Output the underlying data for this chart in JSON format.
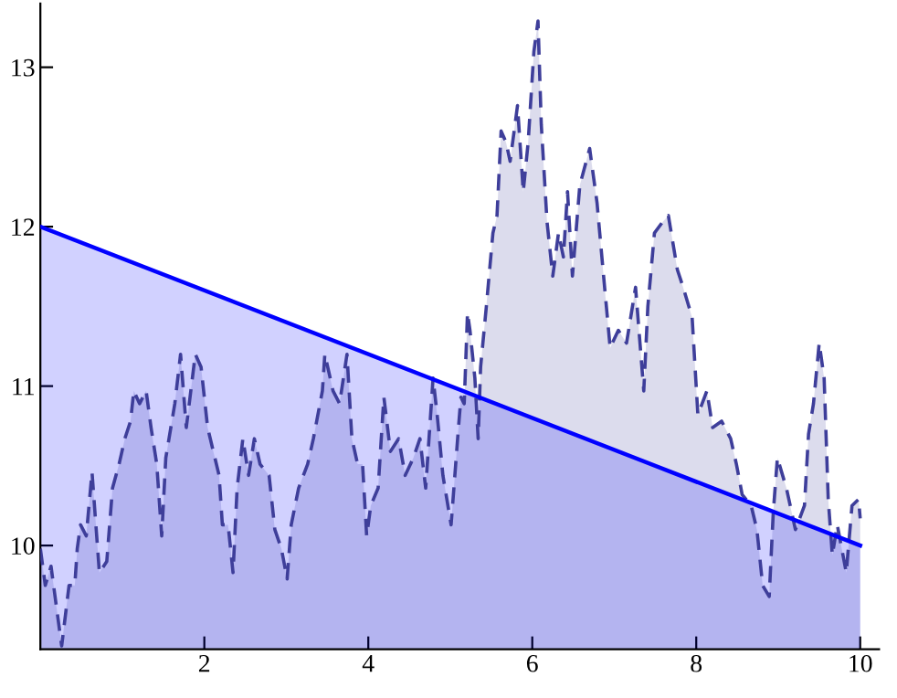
{
  "chart_data": {
    "type": "area",
    "xlim": [
      0,
      10.23
    ],
    "ylim": [
      9.35,
      13.4
    ],
    "xticks": [
      2,
      4,
      6,
      8,
      10
    ],
    "yticks": [
      10,
      11,
      12,
      13
    ],
    "grid": false,
    "legend": false,
    "series": [
      {
        "color": "#3e3e9a",
        "line_style": "dashed",
        "x": [
          0,
          0.06,
          0.13,
          0.2,
          0.26,
          0.35,
          0.42,
          0.45,
          0.49,
          0.56,
          0.63,
          0.72,
          0.81,
          0.88,
          0.96,
          1.03,
          1.1,
          1.14,
          1.21,
          1.29,
          1.35,
          1.42,
          1.48,
          1.53,
          1.64,
          1.71,
          1.78,
          1.89,
          1.96,
          2.04,
          2.11,
          2.18,
          2.22,
          2.29,
          2.35,
          2.4,
          2.47,
          2.54,
          2.61,
          2.68,
          2.79,
          2.86,
          2.94,
          3.01,
          3.06,
          3.15,
          3.26,
          3.33,
          3.44,
          3.47,
          3.57,
          3.65,
          3.74,
          3.8,
          3.87,
          3.93,
          3.98,
          4.03,
          4.12,
          4.19,
          4.27,
          4.37,
          4.45,
          4.55,
          4.63,
          4.7,
          4.79,
          4.84,
          4.91,
          5.01,
          5.1,
          5.13,
          5.17,
          5.21,
          5.24,
          5.3,
          5.34,
          5.37,
          5.44,
          5.52,
          5.57,
          5.62,
          5.68,
          5.73,
          5.82,
          5.89,
          5.95,
          6.02,
          6.07,
          6.11,
          6.18,
          6.25,
          6.32,
          6.38,
          6.43,
          6.49,
          6.58,
          6.7,
          6.79,
          6.87,
          6.95,
          7.05,
          7.15,
          7.26,
          7.36,
          7.41,
          7.49,
          7.59,
          7.66,
          7.77,
          7.84,
          7.95,
          8.02,
          8.13,
          8.2,
          8.31,
          8.42,
          8.49,
          8.56,
          8.67,
          8.74,
          8.81,
          8.89,
          8.94,
          8.99,
          9.1,
          9.21,
          9.32,
          9.37,
          9.43,
          9.5,
          9.56,
          9.61,
          9.66,
          9.72,
          9.83,
          9.9,
          9.98,
          10.0
        ],
        "values": [
          9.98,
          9.75,
          9.87,
          9.6,
          9.37,
          9.75,
          9.75,
          9.98,
          10.13,
          10.06,
          10.46,
          9.83,
          9.9,
          10.36,
          10.51,
          10.67,
          10.78,
          10.97,
          10.89,
          10.97,
          10.74,
          10.51,
          10.06,
          10.55,
          10.89,
          11.2,
          10.74,
          11.2,
          11.12,
          10.74,
          10.59,
          10.44,
          10.13,
          10.13,
          9.83,
          10.36,
          10.67,
          10.44,
          10.67,
          10.51,
          10.44,
          10.1,
          9.98,
          9.79,
          10.13,
          10.36,
          10.51,
          10.67,
          10.97,
          11.2,
          10.97,
          10.89,
          11.2,
          10.67,
          10.51,
          10.51,
          10.06,
          10.25,
          10.36,
          10.93,
          10.59,
          10.67,
          10.44,
          10.55,
          10.67,
          10.36,
          11.05,
          10.82,
          10.44,
          10.13,
          10.74,
          10.93,
          10.89,
          11.46,
          11.35,
          11.05,
          10.67,
          11.12,
          11.5,
          11.96,
          12.07,
          12.6,
          12.53,
          12.41,
          12.76,
          12.22,
          12.53,
          13.1,
          13.29,
          12.64,
          12.03,
          11.69,
          11.96,
          11.81,
          12.22,
          11.69,
          12.26,
          12.49,
          12.15,
          11.69,
          11.24,
          11.35,
          11.27,
          11.62,
          10.97,
          11.5,
          11.96,
          12.03,
          12.07,
          11.73,
          11.62,
          11.43,
          10.82,
          10.97,
          10.74,
          10.78,
          10.67,
          10.51,
          10.32,
          10.25,
          10.1,
          9.75,
          9.68,
          10.21,
          10.55,
          10.36,
          10.1,
          10.25,
          10.7,
          10.89,
          11.27,
          11.05,
          10.29,
          9.94,
          10.13,
          9.83,
          10.25,
          10.29,
          10.17
        ]
      },
      {
        "color": "#0000ff",
        "line_style": "solid",
        "x": [
          0,
          10
        ],
        "values": [
          12,
          10
        ]
      }
    ]
  }
}
